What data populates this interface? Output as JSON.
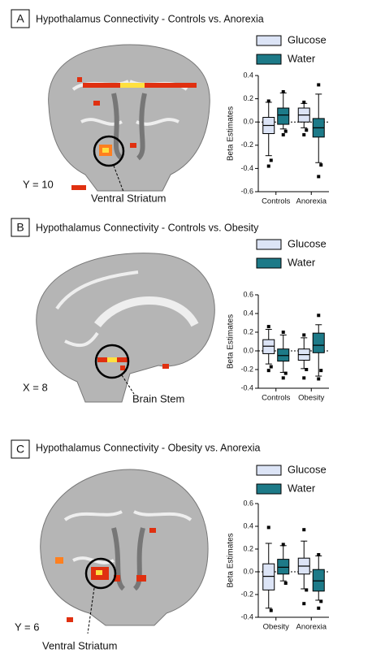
{
  "chart_data": [
    {
      "type": "box",
      "panel": "A",
      "title": "Hypothalamus Connectivity - Controls vs. Anorexia",
      "annotations": [
        "Y = 10",
        "Ventral  Striatum"
      ],
      "ylabel": "Beta Estimates",
      "categories": [
        "Controls",
        "Anorexia"
      ],
      "ylim": [
        -0.6,
        0.4
      ],
      "yticks": [
        -0.6,
        -0.4,
        -0.2,
        {
          "value": 0,
          "label": "0.0"
        },
        0.2,
        0.4
      ],
      "series": [
        {
          "name": "Glucose",
          "color": "#dce4f6",
          "boxes": [
            {
              "whislo": -0.29,
              "q1": -0.1,
              "med": -0.03,
              "q3": 0.04,
              "whishi": 0.17,
              "fliers": [
                0.18,
                -0.33,
                -0.38
              ]
            },
            {
              "whislo": -0.05,
              "q1": 0.0,
              "med": 0.06,
              "q3": 0.12,
              "whishi": 0.16,
              "fliers": [
                0.17,
                -0.07,
                -0.11
              ]
            }
          ]
        },
        {
          "name": "Water",
          "color": "#1d7a88",
          "boxes": [
            {
              "whislo": -0.06,
              "q1": -0.02,
              "med": 0.06,
              "q3": 0.12,
              "whishi": 0.25,
              "fliers": [
                0.26,
                -0.08,
                -0.11
              ]
            },
            {
              "whislo": -0.35,
              "q1": -0.13,
              "med": -0.05,
              "q3": 0.03,
              "whishi": 0.24,
              "fliers": [
                0.32,
                -0.37,
                -0.47
              ]
            }
          ]
        }
      ]
    },
    {
      "type": "box",
      "panel": "B",
      "title": "Hypothalamus Connectivity - Controls vs. Obesity",
      "annotations": [
        "X = 8",
        "Brain Stem"
      ],
      "ylabel": "Beta Estimates",
      "categories": [
        "Controls",
        "Obesity"
      ],
      "ylim": [
        -0.4,
        0.6
      ],
      "yticks": [
        -0.4,
        -0.2,
        {
          "value": 0,
          "label": "0.0"
        },
        0.2,
        0.4,
        0.6
      ],
      "series": [
        {
          "name": "Glucose",
          "color": "#dce4f6",
          "boxes": [
            {
              "whislo": -0.14,
              "q1": -0.03,
              "med": 0.05,
              "q3": 0.12,
              "whishi": 0.23,
              "fliers": [
                0.26,
                -0.17,
                -0.21
              ]
            },
            {
              "whislo": -0.19,
              "q1": -0.1,
              "med": -0.04,
              "q3": 0.02,
              "whishi": 0.14,
              "fliers": [
                0.17,
                -0.2,
                -0.29
              ]
            }
          ]
        },
        {
          "name": "Water",
          "color": "#1d7a88",
          "boxes": [
            {
              "whislo": -0.23,
              "q1": -0.11,
              "med": -0.05,
              "q3": 0.02,
              "whishi": 0.17,
              "fliers": [
                0.2,
                -0.24,
                -0.29
              ]
            },
            {
              "whislo": -0.27,
              "q1": -0.02,
              "med": 0.06,
              "q3": 0.19,
              "whishi": 0.28,
              "fliers": [
                0.38,
                -0.21,
                -0.3
              ]
            }
          ]
        }
      ]
    },
    {
      "type": "box",
      "panel": "C",
      "title": "Hypothalamus Connectivity - Obesity vs. Anorexia",
      "annotations": [
        "Y = 6",
        "Ventral  Striatum"
      ],
      "ylabel": "Beta Estimates",
      "categories": [
        "Obesity",
        "Anorexia"
      ],
      "ylim": [
        -0.4,
        0.6
      ],
      "yticks": [
        -0.4,
        -0.2,
        {
          "value": 0,
          "label": "0.0"
        },
        0.2,
        0.4,
        0.6
      ],
      "series": [
        {
          "name": "Glucose",
          "color": "#dce4f6",
          "boxes": [
            {
              "whislo": -0.32,
              "q1": -0.16,
              "med": -0.04,
              "q3": 0.07,
              "whishi": 0.25,
              "fliers": [
                0.39,
                -0.34
              ]
            },
            {
              "whislo": -0.15,
              "q1": -0.02,
              "med": 0.05,
              "q3": 0.12,
              "whishi": 0.27,
              "fliers": [
                0.37,
                -0.16,
                -0.28
              ]
            }
          ]
        },
        {
          "name": "Water",
          "color": "#1d7a88",
          "boxes": [
            {
              "whislo": -0.08,
              "q1": -0.02,
              "med": 0.04,
              "q3": 0.11,
              "whishi": 0.23,
              "fliers": [
                0.24,
                -0.1
              ]
            },
            {
              "whislo": -0.25,
              "q1": -0.17,
              "med": -0.08,
              "q3": 0.02,
              "whishi": 0.14,
              "fliers": [
                0.15,
                -0.26,
                -0.32
              ]
            }
          ]
        }
      ]
    }
  ]
}
